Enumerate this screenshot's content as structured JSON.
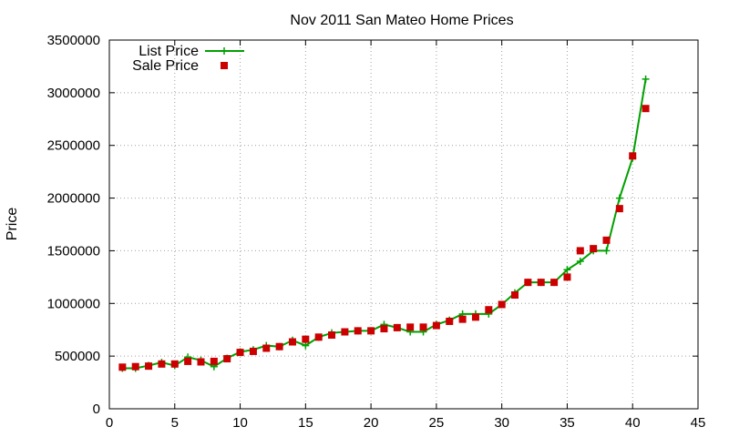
{
  "chart_data": {
    "type": "line",
    "title": "Nov 2011 San Mateo Home Prices",
    "xlabel": "",
    "ylabel": "Price",
    "xlim": [
      0,
      45
    ],
    "ylim": [
      0,
      3500000
    ],
    "x_ticks": [
      0,
      5,
      10,
      15,
      20,
      25,
      30,
      35,
      40,
      45
    ],
    "y_ticks": [
      0,
      500000,
      1000000,
      1500000,
      2000000,
      2500000,
      3000000,
      3500000
    ],
    "grid": true,
    "legend_position": "top-left",
    "x": [
      1,
      2,
      3,
      4,
      5,
      6,
      7,
      8,
      9,
      10,
      11,
      12,
      13,
      14,
      15,
      16,
      17,
      18,
      19,
      20,
      21,
      22,
      23,
      24,
      25,
      26,
      27,
      28,
      29,
      30,
      31,
      32,
      33,
      34,
      35,
      36,
      37,
      38,
      39,
      40,
      41
    ],
    "series": [
      {
        "name": "List Price",
        "style": "line-plus",
        "color": "#00a000",
        "values": [
          385000,
          385000,
          410000,
          440000,
          410000,
          490000,
          460000,
          400000,
          480000,
          540000,
          560000,
          600000,
          590000,
          650000,
          600000,
          680000,
          720000,
          730000,
          740000,
          740000,
          800000,
          770000,
          730000,
          730000,
          800000,
          840000,
          900000,
          900000,
          900000,
          990000,
          1100000,
          1200000,
          1200000,
          1200000,
          1320000,
          1400000,
          1500000,
          1500000,
          2000000,
          2380000,
          3130000
        ]
      },
      {
        "name": "Sale Price",
        "style": "square-marker",
        "color": "#cc0000",
        "values": [
          395000,
          400000,
          405000,
          425000,
          425000,
          450000,
          445000,
          450000,
          475000,
          535000,
          545000,
          575000,
          590000,
          635000,
          660000,
          680000,
          700000,
          730000,
          740000,
          740000,
          760000,
          770000,
          775000,
          775000,
          790000,
          830000,
          850000,
          870000,
          940000,
          990000,
          1080000,
          1200000,
          1200000,
          1200000,
          1250000,
          1500000,
          1520000,
          1600000,
          1900000,
          2400000,
          2850000
        ]
      }
    ]
  }
}
